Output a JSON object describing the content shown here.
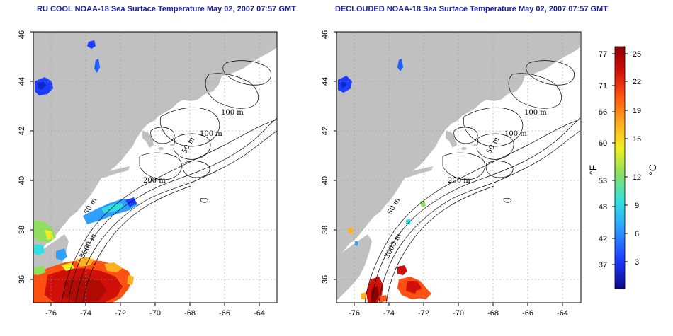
{
  "panels": [
    {
      "title": "RU COOL NOAA-18 Sea Surface Temperature May 02, 2007 07:57 GMT",
      "contour_labels": [
        "100 m",
        "100 m",
        "50 m",
        "200 m",
        "50 m",
        "3000 m"
      ]
    },
    {
      "title": "DECLOUDED NOAA-18 Sea Surface Temperature May 02, 2007 07:57 GMT",
      "contour_labels": [
        "100 m",
        "100 m",
        "50 m",
        "200 m",
        "50 m",
        "3000 m"
      ]
    }
  ],
  "x_ticks": [
    "-76",
    "-74",
    "-72",
    "-70",
    "-68",
    "-66",
    "-64"
  ],
  "y_ticks": [
    "36",
    "38",
    "40",
    "42",
    "44",
    "46"
  ],
  "colorbar": {
    "fahrenheit_ticks": [
      "77",
      "71",
      "66",
      "60",
      "53",
      "48",
      "42",
      "37"
    ],
    "celsius_ticks": [
      "25",
      "22",
      "19",
      "16",
      "12",
      "9",
      "6",
      "3"
    ],
    "fahrenheit_unit": "°F",
    "celsius_unit": "°C",
    "colors": [
      "#0a0a8c",
      "#1e3cff",
      "#2ea0ff",
      "#30e0e0",
      "#90e060",
      "#f0f020",
      "#ffb020",
      "#ff5010",
      "#d01008",
      "#8c0000"
    ]
  },
  "land_color": "#c0c0c0"
}
